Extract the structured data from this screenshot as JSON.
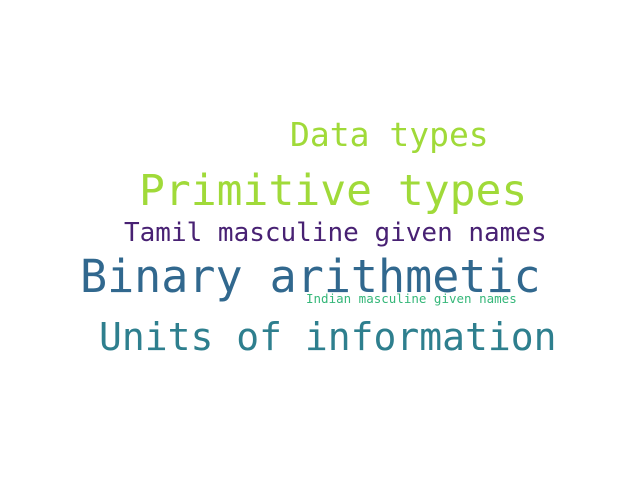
{
  "words": [
    {
      "text": "Data types",
      "color": "#a0da39"
    },
    {
      "text": "Primitive types",
      "color": "#a0da39"
    },
    {
      "text": "Tamil masculine given names",
      "color": "#482173"
    },
    {
      "text": "Binary arithmetic",
      "color": "#31688e"
    },
    {
      "text": "Indian masculine given names",
      "color": "#35b779"
    },
    {
      "text": "Units of information",
      "color": "#2e7f8e"
    }
  ]
}
